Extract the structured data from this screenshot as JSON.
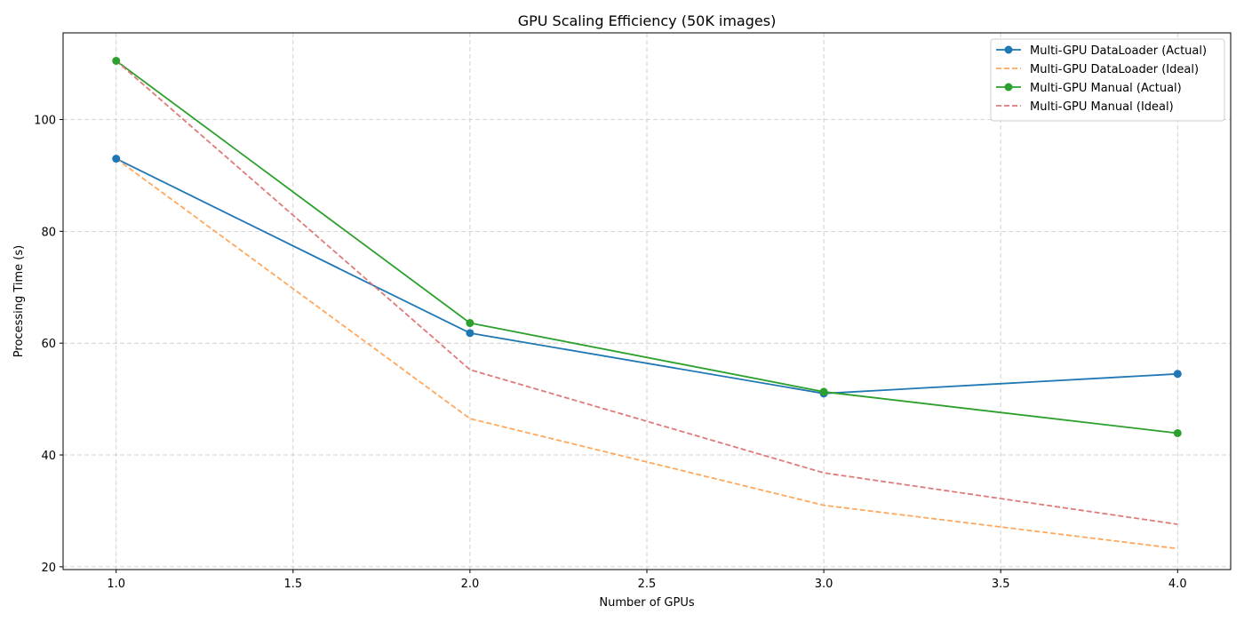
{
  "chart_data": {
    "type": "line",
    "title": "GPU Scaling Efficiency (50K images)",
    "xlabel": "Number of GPUs",
    "ylabel": "Processing Time (s)",
    "xlim": [
      0.85,
      4.15
    ],
    "ylim": [
      19.5,
      115.5
    ],
    "x_ticks": [
      "1.0",
      "1.5",
      "2.0",
      "2.5",
      "3.0",
      "3.5",
      "4.0"
    ],
    "y_ticks": [
      "20",
      "40",
      "60",
      "80",
      "100"
    ],
    "x_tick_values": [
      1.0,
      1.5,
      2.0,
      2.5,
      3.0,
      3.5,
      4.0
    ],
    "y_tick_values": [
      20,
      40,
      60,
      80,
      100
    ],
    "grid": true,
    "legend_position": "top-right",
    "x": [
      1,
      2,
      3,
      4
    ],
    "series": [
      {
        "name": "Multi-GPU DataLoader (Actual)",
        "values": [
          93.0,
          61.8,
          51.0,
          54.5
        ],
        "color": "#1f77b4",
        "dashed": false,
        "markers": true
      },
      {
        "name": "Multi-GPU DataLoader (Ideal)",
        "values": [
          93.0,
          46.5,
          31.0,
          23.25
        ],
        "color": "#ffa85c",
        "dashed": true,
        "markers": false
      },
      {
        "name": "Multi-GPU Manual (Actual)",
        "values": [
          110.5,
          63.6,
          51.3,
          43.9
        ],
        "color": "#2ca02c",
        "dashed": false,
        "markers": true
      },
      {
        "name": "Multi-GPU Manual (Ideal)",
        "values": [
          110.5,
          55.25,
          36.8,
          27.6
        ],
        "color": "#e07a7a",
        "dashed": true,
        "markers": false
      }
    ]
  }
}
